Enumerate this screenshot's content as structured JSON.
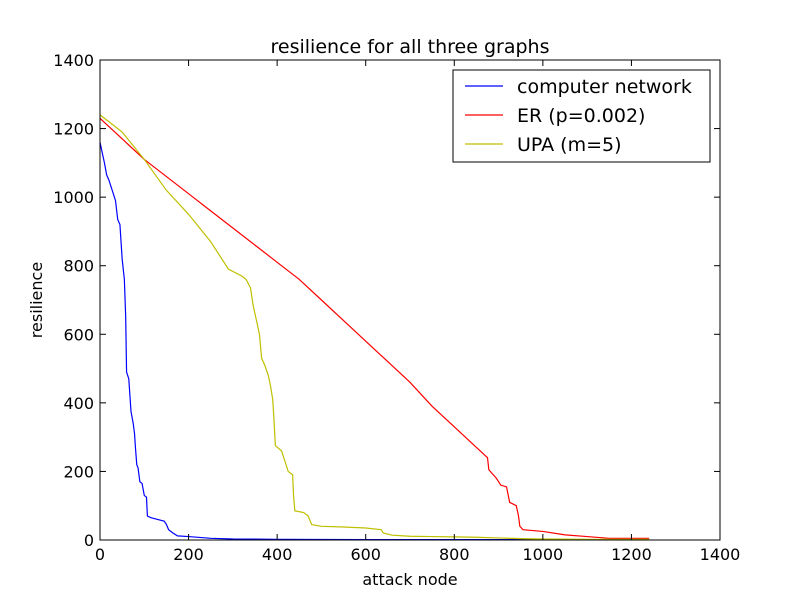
{
  "chart_data": {
    "type": "line",
    "title": "resilience for all three graphs",
    "xlabel": "attack node",
    "ylabel": "resilience",
    "xlim": [
      0,
      1400
    ],
    "ylim": [
      0,
      1400
    ],
    "xticks": [
      0,
      200,
      400,
      600,
      800,
      1000,
      1200,
      1400
    ],
    "yticks": [
      0,
      200,
      400,
      600,
      800,
      1000,
      1200,
      1400
    ],
    "grid": false,
    "legend_position": "top-right",
    "series": [
      {
        "name": "computer network",
        "color": "#0000ff",
        "points": [
          [
            0,
            1160
          ],
          [
            5,
            1130
          ],
          [
            10,
            1100
          ],
          [
            15,
            1065
          ],
          [
            20,
            1050
          ],
          [
            25,
            1030
          ],
          [
            30,
            1010
          ],
          [
            35,
            990
          ],
          [
            40,
            935
          ],
          [
            45,
            920
          ],
          [
            50,
            820
          ],
          [
            55,
            760
          ],
          [
            58,
            650
          ],
          [
            60,
            490
          ],
          [
            65,
            470
          ],
          [
            70,
            375
          ],
          [
            75,
            340
          ],
          [
            78,
            310
          ],
          [
            80,
            270
          ],
          [
            83,
            220
          ],
          [
            86,
            210
          ],
          [
            90,
            170
          ],
          [
            95,
            165
          ],
          [
            100,
            130
          ],
          [
            105,
            125
          ],
          [
            107,
            70
          ],
          [
            115,
            65
          ],
          [
            130,
            60
          ],
          [
            145,
            55
          ],
          [
            150,
            45
          ],
          [
            155,
            30
          ],
          [
            165,
            20
          ],
          [
            175,
            12
          ],
          [
            200,
            10
          ],
          [
            250,
            5
          ],
          [
            300,
            3
          ],
          [
            400,
            2
          ],
          [
            600,
            1
          ],
          [
            1240,
            1
          ]
        ]
      },
      {
        "name": "ER (p=0.002)",
        "color": "#ff0000",
        "points": [
          [
            0,
            1230
          ],
          [
            50,
            1170
          ],
          [
            100,
            1110
          ],
          [
            150,
            1060
          ],
          [
            200,
            1010
          ],
          [
            250,
            960
          ],
          [
            300,
            910
          ],
          [
            350,
            860
          ],
          [
            400,
            810
          ],
          [
            450,
            760
          ],
          [
            500,
            700
          ],
          [
            550,
            640
          ],
          [
            600,
            580
          ],
          [
            650,
            520
          ],
          [
            700,
            460
          ],
          [
            750,
            390
          ],
          [
            800,
            330
          ],
          [
            850,
            270
          ],
          [
            875,
            240
          ],
          [
            878,
            205
          ],
          [
            895,
            180
          ],
          [
            905,
            160
          ],
          [
            918,
            155
          ],
          [
            925,
            110
          ],
          [
            940,
            100
          ],
          [
            945,
            70
          ],
          [
            948,
            40
          ],
          [
            955,
            30
          ],
          [
            1000,
            25
          ],
          [
            1050,
            15
          ],
          [
            1100,
            10
          ],
          [
            1150,
            5
          ],
          [
            1240,
            5
          ]
        ]
      },
      {
        "name": "UPA (m=5)",
        "color": "#bfbf00",
        "points": [
          [
            0,
            1240
          ],
          [
            50,
            1190
          ],
          [
            100,
            1110
          ],
          [
            150,
            1020
          ],
          [
            200,
            950
          ],
          [
            250,
            870
          ],
          [
            290,
            790
          ],
          [
            320,
            770
          ],
          [
            330,
            760
          ],
          [
            340,
            735
          ],
          [
            345,
            690
          ],
          [
            350,
            660
          ],
          [
            355,
            630
          ],
          [
            360,
            600
          ],
          [
            365,
            530
          ],
          [
            372,
            510
          ],
          [
            380,
            480
          ],
          [
            385,
            450
          ],
          [
            390,
            410
          ],
          [
            392,
            370
          ],
          [
            396,
            275
          ],
          [
            410,
            260
          ],
          [
            420,
            220
          ],
          [
            425,
            200
          ],
          [
            435,
            190
          ],
          [
            437,
            130
          ],
          [
            440,
            85
          ],
          [
            460,
            80
          ],
          [
            470,
            70
          ],
          [
            478,
            45
          ],
          [
            500,
            40
          ],
          [
            550,
            38
          ],
          [
            600,
            35
          ],
          [
            635,
            30
          ],
          [
            640,
            20
          ],
          [
            660,
            14
          ],
          [
            700,
            11
          ],
          [
            750,
            10
          ],
          [
            800,
            9
          ],
          [
            850,
            8
          ],
          [
            900,
            6
          ],
          [
            950,
            4
          ],
          [
            1000,
            3
          ],
          [
            1100,
            2
          ],
          [
            1240,
            2
          ]
        ]
      }
    ]
  }
}
